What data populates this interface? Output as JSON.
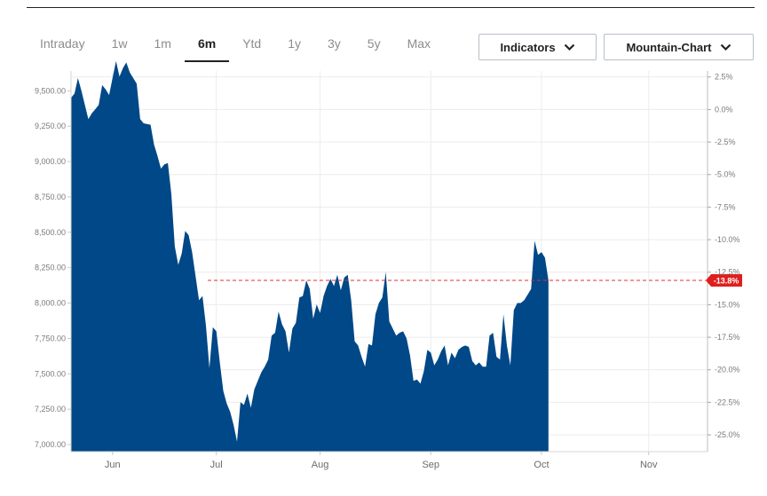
{
  "tabs": [
    {
      "label": "Intraday",
      "active": false
    },
    {
      "label": "1w",
      "active": false
    },
    {
      "label": "1m",
      "active": false
    },
    {
      "label": "6m",
      "active": true
    },
    {
      "label": "Ytd",
      "active": false
    },
    {
      "label": "1y",
      "active": false
    },
    {
      "label": "3y",
      "active": false
    },
    {
      "label": "5y",
      "active": false
    },
    {
      "label": "Max",
      "active": false
    }
  ],
  "controls": {
    "indicators_label": "Indicators",
    "chart_type_label": "Mountain-Chart"
  },
  "colors": {
    "area": "#004887",
    "reference_line": "#e03030",
    "badge": "#e01e1e"
  },
  "chart_data": {
    "type": "area",
    "x_range": [
      0,
      184
    ],
    "ylim": [
      6950,
      9640
    ],
    "y2lim": [
      -26.29,
      2.96
    ],
    "y_ticks": [
      {
        "v": 7000,
        "label": "7,000.00"
      },
      {
        "v": 7250,
        "label": "7,250.00"
      },
      {
        "v": 7500,
        "label": "7,500.00"
      },
      {
        "v": 7750,
        "label": "7,750.00"
      },
      {
        "v": 8000,
        "label": "8,000.00"
      },
      {
        "v": 8250,
        "label": "8,250.00"
      },
      {
        "v": 8500,
        "label": "8,500.00"
      },
      {
        "v": 8750,
        "label": "8,750.00"
      },
      {
        "v": 9000,
        "label": "9,000.00"
      },
      {
        "v": 9250,
        "label": "9,250.00"
      },
      {
        "v": 9500,
        "label": "9,500.00"
      }
    ],
    "y2_ticks": [
      {
        "v": 2.5,
        "label": "2.5%"
      },
      {
        "v": 0,
        "label": "0.0%"
      },
      {
        "v": -2.5,
        "label": "-2.5%"
      },
      {
        "v": -5,
        "label": "-5.0%"
      },
      {
        "v": -7.5,
        "label": "-7.5%"
      },
      {
        "v": -10,
        "label": "-10.0%"
      },
      {
        "v": -12.5,
        "label": "-12.5%"
      },
      {
        "v": -15,
        "label": "-15.0%"
      },
      {
        "v": -17.5,
        "label": "-17.5%"
      },
      {
        "v": -20,
        "label": "-20.0%"
      },
      {
        "v": -22.5,
        "label": "-22.5%"
      },
      {
        "v": -25,
        "label": "-25.0%"
      }
    ],
    "x_ticks": [
      {
        "x": 12,
        "label": "Jun"
      },
      {
        "x": 42,
        "label": "Jul"
      },
      {
        "x": 72,
        "label": "Aug"
      },
      {
        "x": 104,
        "label": "Sep"
      },
      {
        "x": 136,
        "label": "Oct"
      },
      {
        "x": 167,
        "label": "Nov"
      }
    ],
    "reference": {
      "value": 8160,
      "label": "-13.8%"
    },
    "grid": true,
    "points": [
      [
        0,
        9450
      ],
      [
        1,
        9480
      ],
      [
        2,
        9590
      ],
      [
        3,
        9500
      ],
      [
        5,
        9300
      ],
      [
        6,
        9340
      ],
      [
        7,
        9370
      ],
      [
        8,
        9400
      ],
      [
        9,
        9540
      ],
      [
        10,
        9510
      ],
      [
        11,
        9470
      ],
      [
        13,
        9710
      ],
      [
        14,
        9600
      ],
      [
        15,
        9660
      ],
      [
        16,
        9700
      ],
      [
        17,
        9630
      ],
      [
        19,
        9550
      ],
      [
        20,
        9300
      ],
      [
        21,
        9270
      ],
      [
        23,
        9260
      ],
      [
        24,
        9120
      ],
      [
        25,
        9040
      ],
      [
        26,
        8950
      ],
      [
        27,
        8980
      ],
      [
        28,
        8990
      ],
      [
        29,
        8770
      ],
      [
        30,
        8400
      ],
      [
        31,
        8270
      ],
      [
        32,
        8350
      ],
      [
        33,
        8510
      ],
      [
        34,
        8480
      ],
      [
        35,
        8360
      ],
      [
        36,
        8190
      ],
      [
        37,
        8020
      ],
      [
        38,
        8050
      ],
      [
        39,
        7840
      ],
      [
        40,
        7540
      ],
      [
        41,
        7830
      ],
      [
        42,
        7800
      ],
      [
        43,
        7580
      ],
      [
        44,
        7380
      ],
      [
        45,
        7290
      ],
      [
        46,
        7230
      ],
      [
        47,
        7140
      ],
      [
        48,
        7020
      ],
      [
        49,
        7300
      ],
      [
        50,
        7280
      ],
      [
        51,
        7360
      ],
      [
        52,
        7260
      ],
      [
        53,
        7390
      ],
      [
        54,
        7450
      ],
      [
        55,
        7510
      ],
      [
        56,
        7550
      ],
      [
        57,
        7600
      ],
      [
        58,
        7770
      ],
      [
        59,
        7790
      ],
      [
        60,
        7940
      ],
      [
        61,
        7850
      ],
      [
        62,
        7800
      ],
      [
        63,
        7650
      ],
      [
        64,
        7820
      ],
      [
        65,
        7860
      ],
      [
        66,
        8040
      ],
      [
        67,
        8050
      ],
      [
        68,
        8160
      ],
      [
        69,
        8100
      ],
      [
        70,
        7890
      ],
      [
        71,
        7990
      ],
      [
        72,
        7930
      ],
      [
        73,
        8050
      ],
      [
        74,
        8120
      ],
      [
        75,
        8170
      ],
      [
        76,
        8120
      ],
      [
        77,
        8200
      ],
      [
        78,
        8090
      ],
      [
        79,
        8180
      ],
      [
        80,
        8200
      ],
      [
        81,
        8020
      ],
      [
        82,
        7730
      ],
      [
        83,
        7700
      ],
      [
        84,
        7620
      ],
      [
        85,
        7550
      ],
      [
        86,
        7710
      ],
      [
        87,
        7700
      ],
      [
        88,
        7920
      ],
      [
        89,
        8000
      ],
      [
        90,
        8040
      ],
      [
        91,
        8220
      ],
      [
        92,
        7870
      ],
      [
        93,
        7820
      ],
      [
        94,
        7770
      ],
      [
        95,
        7790
      ],
      [
        96,
        7800
      ],
      [
        97,
        7750
      ],
      [
        98,
        7630
      ],
      [
        99,
        7450
      ],
      [
        100,
        7460
      ],
      [
        101,
        7430
      ],
      [
        102,
        7520
      ],
      [
        103,
        7670
      ],
      [
        104,
        7650
      ],
      [
        105,
        7560
      ],
      [
        106,
        7600
      ],
      [
        107,
        7660
      ],
      [
        108,
        7700
      ],
      [
        109,
        7560
      ],
      [
        110,
        7650
      ],
      [
        111,
        7610
      ],
      [
        112,
        7670
      ],
      [
        113,
        7690
      ],
      [
        114,
        7700
      ],
      [
        115,
        7690
      ],
      [
        116,
        7590
      ],
      [
        117,
        7560
      ],
      [
        118,
        7580
      ],
      [
        119,
        7550
      ],
      [
        120,
        7550
      ],
      [
        121,
        7770
      ],
      [
        122,
        7790
      ],
      [
        123,
        7620
      ],
      [
        124,
        7600
      ],
      [
        125,
        7920
      ],
      [
        126,
        7700
      ],
      [
        127,
        7560
      ],
      [
        128,
        7950
      ],
      [
        129,
        8000
      ],
      [
        130,
        8000
      ],
      [
        131,
        8020
      ],
      [
        132,
        8060
      ],
      [
        133,
        8100
      ],
      [
        134,
        8440
      ],
      [
        135,
        8340
      ],
      [
        136,
        8360
      ],
      [
        137,
        8320
      ],
      [
        138,
        8160
      ]
    ]
  }
}
